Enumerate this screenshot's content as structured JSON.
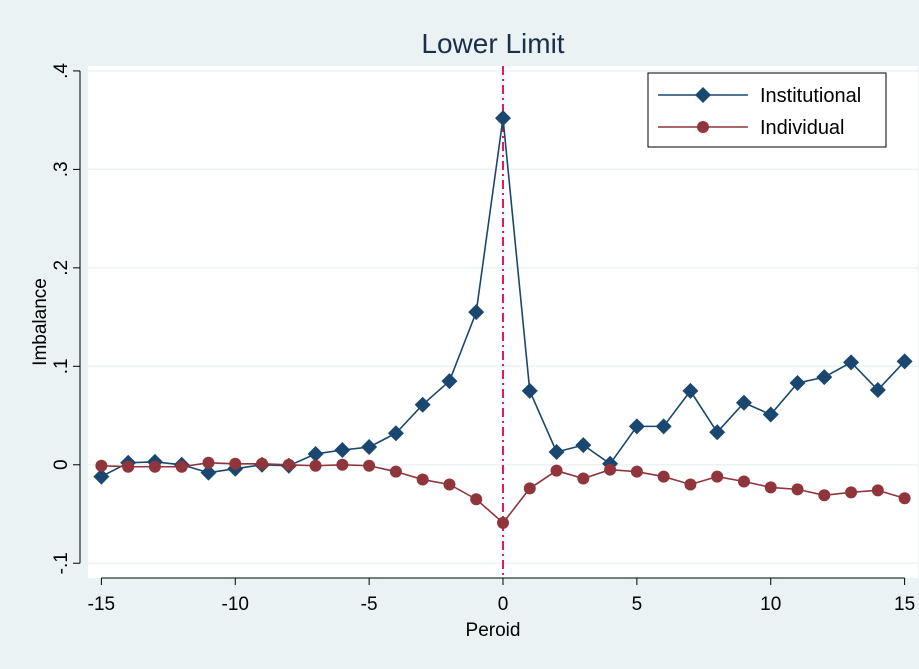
{
  "chart_data": {
    "type": "line",
    "title": "Lower Limit",
    "xlabel": "Peroid",
    "ylabel": "Imbalance",
    "xlim": [
      -15.5,
      15.5
    ],
    "ylim": [
      -0.115,
      0.405
    ],
    "xticks": [
      -15,
      -10,
      -5,
      0,
      5,
      10,
      15
    ],
    "xtick_labels": [
      "-15",
      "-10",
      "-5",
      "0",
      "5",
      "10",
      "15"
    ],
    "yticks": [
      -0.1,
      0,
      0.1,
      0.2,
      0.3,
      0.4
    ],
    "ytick_labels": [
      "-.1",
      "0",
      ".1",
      ".2",
      ".3",
      ".4"
    ],
    "grid": "horizontal",
    "reference_line": {
      "x": 0,
      "style": "dash-dot",
      "color": "#e0004d"
    },
    "legend_position": "top-right",
    "x": [
      -15,
      -14,
      -13,
      -12,
      -11,
      -10,
      -9,
      -8,
      -7,
      -6,
      -5,
      -4,
      -3,
      -2,
      -1,
      0,
      1,
      2,
      3,
      4,
      5,
      6,
      7,
      8,
      9,
      10,
      11,
      12,
      13,
      14,
      15
    ],
    "series": [
      {
        "name": "Institutional",
        "marker": "diamond",
        "color": "#1a476f",
        "values": [
          -0.012,
          0.002,
          0.003,
          0.0,
          -0.008,
          -0.004,
          0.0,
          -0.001,
          0.011,
          0.015,
          0.018,
          0.032,
          0.061,
          0.085,
          0.155,
          0.352,
          0.075,
          0.013,
          0.02,
          0.001,
          0.039,
          0.039,
          0.075,
          0.033,
          0.063,
          0.051,
          0.083,
          0.089,
          0.104,
          0.076,
          0.105
        ]
      },
      {
        "name": "Individual",
        "marker": "circle",
        "color": "#90353b",
        "values": [
          -0.001,
          -0.002,
          -0.002,
          -0.002,
          0.002,
          0.001,
          0.001,
          0.0,
          -0.001,
          0.0,
          -0.001,
          -0.007,
          -0.015,
          -0.02,
          -0.035,
          -0.059,
          -0.024,
          -0.006,
          -0.014,
          -0.005,
          -0.007,
          -0.012,
          -0.02,
          -0.012,
          -0.017,
          -0.023,
          -0.025,
          -0.031,
          -0.028,
          -0.026,
          -0.034
        ]
      }
    ]
  }
}
